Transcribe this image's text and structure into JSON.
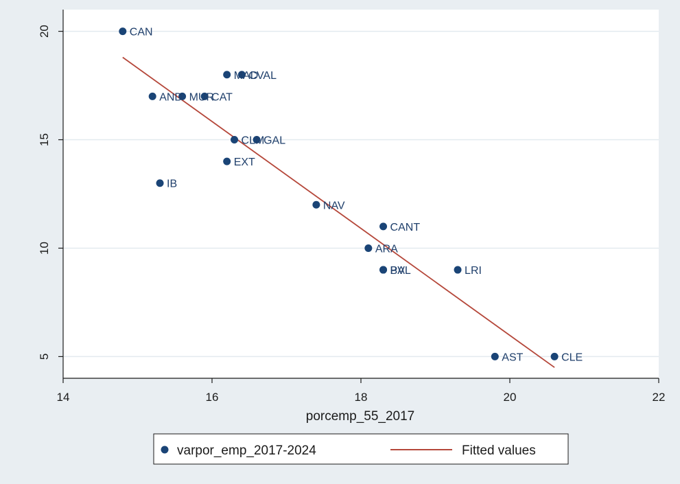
{
  "chart_data": {
    "type": "scatter",
    "xlabel": "porcemp_55_2017",
    "ylabel": "",
    "xlim": [
      14,
      22
    ],
    "ylim": [
      4,
      21
    ],
    "xticks": [
      14,
      16,
      18,
      20,
      22
    ],
    "yticks": [
      5,
      10,
      15,
      20
    ],
    "grid": "horizontal",
    "legend_position": "bottom",
    "colors": {
      "background": "#e9eef2",
      "plot_area": "#ffffff",
      "grid": "#e3eaef",
      "marker": "#1a4476",
      "fit_line": "#b5473a",
      "text": "#1f3f6b"
    },
    "series": [
      {
        "name": "varpor_emp_2017-2024",
        "kind": "scatter",
        "points": [
          {
            "x": 14.8,
            "y": 20,
            "label": "CAN"
          },
          {
            "x": 16.2,
            "y": 18,
            "label": "MAD"
          },
          {
            "x": 16.4,
            "y": 18,
            "label": "CVAL"
          },
          {
            "x": 15.2,
            "y": 17,
            "label": "AND"
          },
          {
            "x": 15.6,
            "y": 17,
            "label": "MUR"
          },
          {
            "x": 15.9,
            "y": 17,
            "label": "CAT"
          },
          {
            "x": 16.3,
            "y": 15,
            "label": "CLM"
          },
          {
            "x": 16.6,
            "y": 15,
            "label": "GAL"
          },
          {
            "x": 16.2,
            "y": 14,
            "label": "EXT"
          },
          {
            "x": 15.3,
            "y": 13,
            "label": "IB"
          },
          {
            "x": 17.4,
            "y": 12,
            "label": "NAV"
          },
          {
            "x": 18.3,
            "y": 11,
            "label": "CANT"
          },
          {
            "x": 18.1,
            "y": 10,
            "label": "ARA"
          },
          {
            "x": 18.3,
            "y": 9,
            "label": "PV"
          },
          {
            "x": 18.3,
            "y": 9,
            "label": "BAL"
          },
          {
            "x": 19.3,
            "y": 9,
            "label": "LRI"
          },
          {
            "x": 19.8,
            "y": 5,
            "label": "AST"
          },
          {
            "x": 20.6,
            "y": 5,
            "label": "CLE"
          }
        ]
      },
      {
        "name": "Fitted values",
        "kind": "line",
        "points": [
          {
            "x": 14.8,
            "y": 18.8
          },
          {
            "x": 20.6,
            "y": 4.5
          }
        ]
      }
    ]
  }
}
